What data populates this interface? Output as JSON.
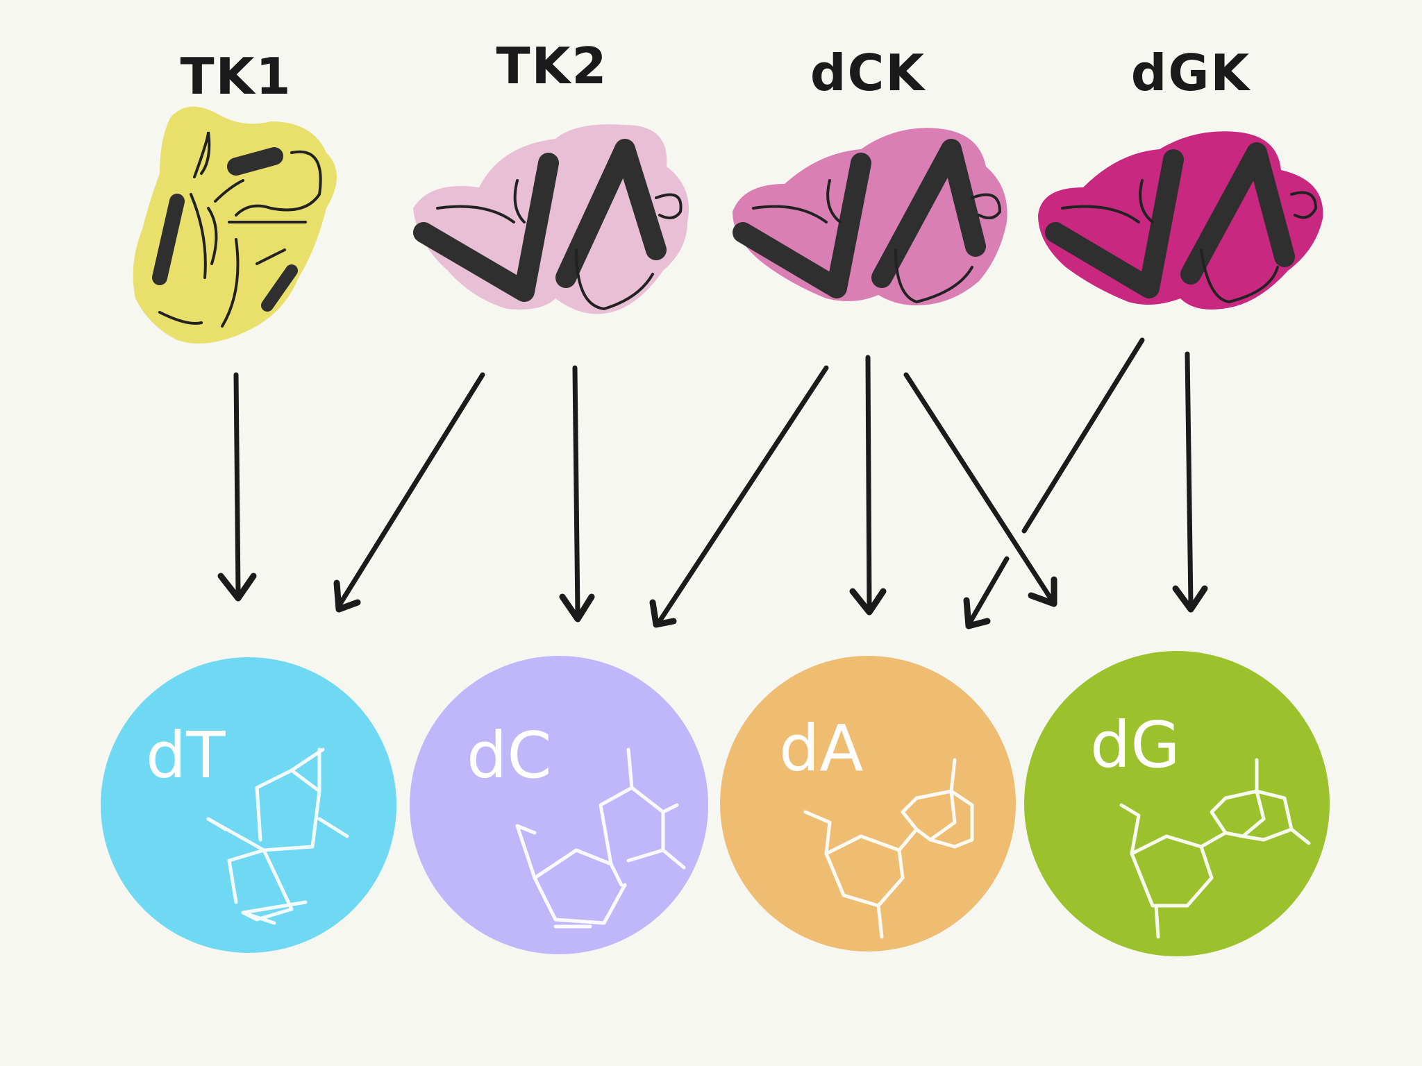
{
  "enzymes": [
    {
      "label": "TK1",
      "color": "#e8e06a"
    },
    {
      "label": "TK2",
      "color": "#e8bfd4"
    },
    {
      "label": "dCK",
      "color": "#d97fb4"
    },
    {
      "label": "dGK",
      "color": "#c8287f"
    }
  ],
  "nucleosides": [
    {
      "label": "dT",
      "color": "#6fd8f2"
    },
    {
      "label": "dC",
      "color": "#c0b7fb"
    },
    {
      "label": "dA",
      "color": "#efbd72"
    },
    {
      "label": "dG",
      "color": "#9bc22d"
    }
  ],
  "phosphorylation_links": [
    {
      "from": "TK1",
      "to": "dT"
    },
    {
      "from": "TK2",
      "to": "dT"
    },
    {
      "from": "TK2",
      "to": "dC"
    },
    {
      "from": "dCK",
      "to": "dC"
    },
    {
      "from": "dCK",
      "to": "dA"
    },
    {
      "from": "dCK",
      "to": "dG"
    },
    {
      "from": "dGK",
      "to": "dA"
    },
    {
      "from": "dGK",
      "to": "dG"
    }
  ]
}
